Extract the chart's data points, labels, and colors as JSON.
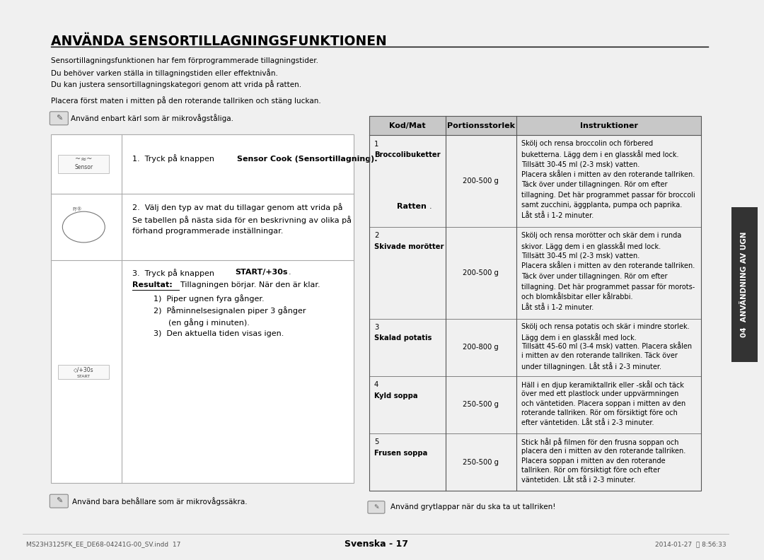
{
  "bg_color": "#ffffff",
  "page_bg": "#f0f0f0",
  "title": "ANVÄNDA SENSORTILLAGNINGSFUNKTIONEN",
  "intro_lines": [
    "Sensortillagningsfunktionen har fem förprogrammerade tillagningstider.",
    "Du behöver varken ställa in tillagningstiden eller effektnivån.",
    "Du kan justera sensortillagningskategori genom att vrida på ratten.",
    "",
    "Placera först maten i mitten på den roterande tallriken och stäng luckan."
  ],
  "note1": "Använd enbart kärl som är mikrovågståliga.",
  "note2": "Använd bara behållare som är mikrovågssäkra.",
  "table_header": [
    "Kod/Mat",
    "Portionsstorlek",
    "Instruktioner"
  ],
  "table_rows": [
    {
      "kod": "1\nBroccolibuketter",
      "portion": "200-500 g",
      "instr": "Skölj och rensa broccolin och förbered\nbuketterna. Lägg dem i en glasskål med lock.\nTillsätt 30-45 ml (2-3 msk) vatten.\nPlacera skålen i mitten av den roterande tallriken.\nTäck över under tillagningen. Rör om efter\ntillagning. Det här programmet passar för broccoli\nsamt zucchini, äggplanta, pumpa och paprika.\nLåt stå i 1-2 minuter.",
      "line_count": 8
    },
    {
      "kod": "2\nSkivade morötter",
      "portion": "200-500 g",
      "instr": "Skölj och rensa morötter och skär dem i runda\nskivor. Lägg dem i en glasskål med lock.\nTillsätt 30-45 ml (2-3 msk) vatten.\nPlacera skålen i mitten av den roterande tallriken.\nTäck över under tillagningen. Rör om efter\ntillagning. Det här programmet passar för morots-\noch blomkålsbitar eller kålrabbi.\nLåt stå i 1-2 minuter.",
      "line_count": 8
    },
    {
      "kod": "3\nSkalad potatis",
      "portion": "200-800 g",
      "instr": "Skölj och rensa potatis och skär i mindre storlek.\nLägg dem i en glasskål med lock.\nTillsätt 45-60 ml (3-4 msk) vatten. Placera skålen\ni mitten av den roterande tallriken. Täck över\nunder tillagningen. Låt stå i 2-3 minuter.",
      "line_count": 5
    },
    {
      "kod": "4\nKyld soppa",
      "portion": "250-500 g",
      "instr": "Häll i en djup keramiktallrik eller -skål och täck\növer med ett plastlock under uppvärmningen\noch väntetiden. Placera soppan i mitten av den\nroterande tallriken. Rör om försiktigt före och\nefter väntetiden. Låt stå i 2-3 minuter.",
      "line_count": 5
    },
    {
      "kod": "5\nFrusen soppa",
      "portion": "250-500 g",
      "instr": "Stick hål på filmen för den frusna soppan och\nplacera den i mitten av den roterande tallriken.\nPlacera soppan i mitten av den roterande\ntallriken. Rör om försiktigt före och efter\nväntetiden. Låt stå i 2-3 minuter.",
      "line_count": 5
    }
  ],
  "table_note": "Använd grytlappar när du ska ta ut tallriken!",
  "side_label": "04  ANVÄNDNING AV UGN",
  "footer_left": "MS23H3125FK_EE_DE68-04241G-00_SV.indd  17",
  "footer_center": "Svenska - 17",
  "footer_right": "2014-01-27  ֍ 8:56:33",
  "header_color": "#c8c8c8",
  "table_border_color": "#555555",
  "side_tab_color": "#808080",
  "side_tab_dark": "#333333"
}
